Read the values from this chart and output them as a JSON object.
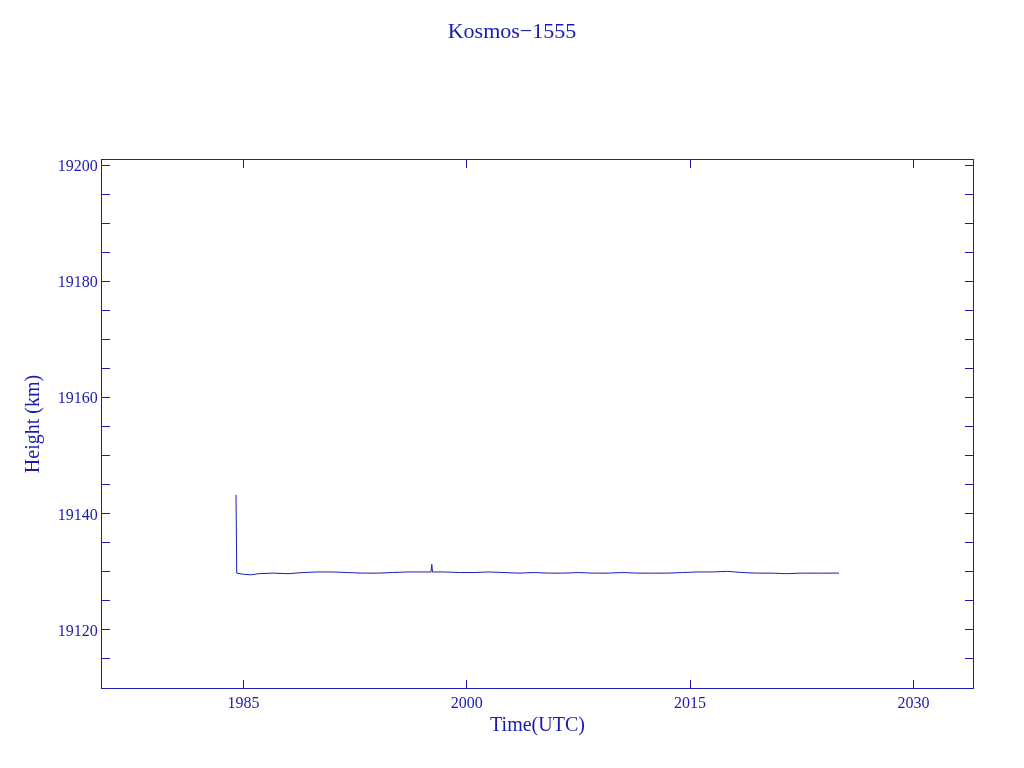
{
  "chart_data": {
    "type": "line",
    "title": "Kosmos−1555",
    "xlabel": "Time(UTC)",
    "ylabel": "Height (km)",
    "x": [
      1984.5,
      1984.55,
      1985.0,
      1985.5,
      1986.0,
      1987.0,
      1988.0,
      1989.0,
      1990.0,
      1991.0,
      1992.0,
      1993.0,
      1994.0,
      1995.0,
      1996.0,
      1997.0,
      1997.6,
      1997.65,
      1997.7,
      1998.5,
      1999.5,
      2000.5,
      2001.5,
      2002.5,
      2003.5,
      2004.5,
      2005.5,
      2006.5,
      2007.5,
      2008.5,
      2009.5,
      2010.5,
      2011.5,
      2012.5,
      2013.5,
      2014.5,
      2015.5,
      2016.5,
      2017.5,
      2018.5,
      2019.5,
      2020.5,
      2021.5,
      2022.5,
      2023.5,
      2025.0
    ],
    "series": [
      {
        "color": "#1c1cb4",
        "values": [
          19143.3,
          19129.8,
          19129.6,
          19129.5,
          19129.7,
          19129.8,
          19129.7,
          19129.9,
          19130.0,
          19130.0,
          19129.9,
          19129.8,
          19129.8,
          19129.9,
          19130.0,
          19130.0,
          19130.0,
          19131.3,
          19130.0,
          19130.0,
          19129.9,
          19129.9,
          19130.0,
          19129.9,
          19129.8,
          19129.9,
          19129.8,
          19129.8,
          19129.9,
          19129.8,
          19129.8,
          19129.9,
          19129.8,
          19129.8,
          19129.8,
          19129.9,
          19130.0,
          19130.0,
          19130.1,
          19129.9,
          19129.8,
          19129.8,
          19129.7,
          19129.8,
          19129.8,
          19129.8
        ]
      }
    ],
    "xlim": [
      1975.5,
      2034
    ],
    "xticks": [
      1985,
      2000,
      2015,
      2030
    ],
    "ylim": [
      19110,
      19201
    ],
    "yticks": [
      {
        "value": 19115,
        "label": null
      },
      19120,
      {
        "value": 19125,
        "label": null
      },
      {
        "value": 19130,
        "label": null
      },
      {
        "value": 19135,
        "label": null
      },
      19140,
      {
        "value": 19145,
        "label": null
      },
      {
        "value": 19150,
        "label": null
      },
      {
        "value": 19155,
        "label": null
      },
      19160,
      {
        "value": 19165,
        "label": null
      },
      {
        "value": 19170,
        "label": null
      },
      {
        "value": 19175,
        "label": null
      },
      19180,
      {
        "value": 19185,
        "label": null
      },
      {
        "value": 19190,
        "label": null
      },
      {
        "value": 19195,
        "label": null
      },
      19200
    ],
    "grid": false,
    "marker": "none",
    "line_style": "solid"
  }
}
